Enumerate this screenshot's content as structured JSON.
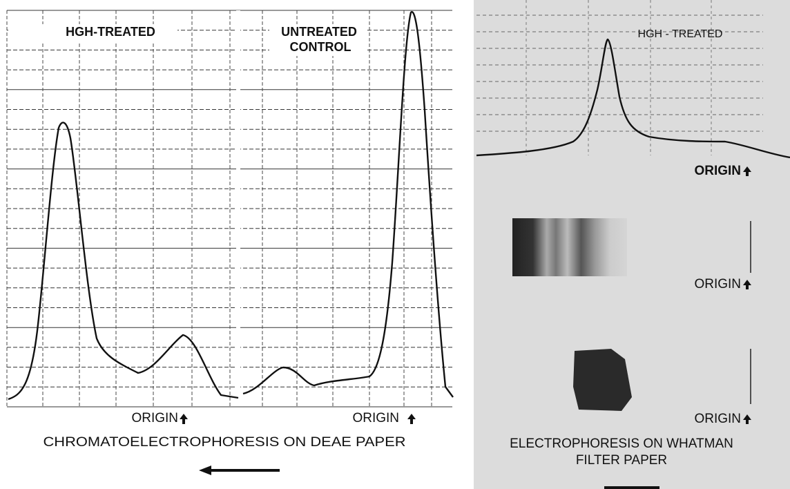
{
  "left_panel": {
    "traces": [
      {
        "label": [
          "HGH-TREATED"
        ],
        "origin": "ORIGIN"
      },
      {
        "label": [
          "UNTREATED",
          "CONTROL"
        ],
        "origin": "ORIGIN"
      }
    ],
    "caption": "CHROMATOELECTROPHORESIS ON DEAE PAPER"
  },
  "right_panel": {
    "trace_label": "HGH - TREATED",
    "origins": [
      "ORIGIN",
      "ORIGIN",
      "ORIGIN"
    ],
    "caption": [
      "ELECTROPHORESIS ON WHATMAN",
      "FILTER PAPER"
    ]
  }
}
